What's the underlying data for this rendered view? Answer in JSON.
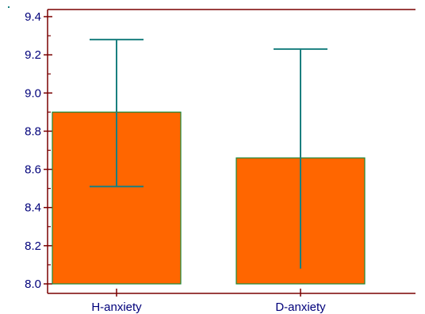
{
  "chart_data": {
    "type": "bar",
    "categories": [
      "H-anxiety",
      "D-anxiety"
    ],
    "values": [
      8.9,
      8.66
    ],
    "error_high": [
      9.28,
      9.23
    ],
    "error_low": [
      8.51,
      8.08
    ],
    "ylim": [
      8.0,
      9.4
    ],
    "yticks": [
      "8.0",
      "8.2",
      "8.4",
      "8.6",
      "8.8",
      "9.0",
      "9.2",
      "9.4"
    ],
    "title": "",
    "xlabel": "",
    "ylabel": "",
    "grid": false,
    "legend": "none",
    "colors": {
      "bar_fill": "#ff6600",
      "bar_stroke": "#1a8a3a",
      "error_bar": "#1a7f7f",
      "axis": "#7a0000",
      "text": "#00007a"
    }
  }
}
